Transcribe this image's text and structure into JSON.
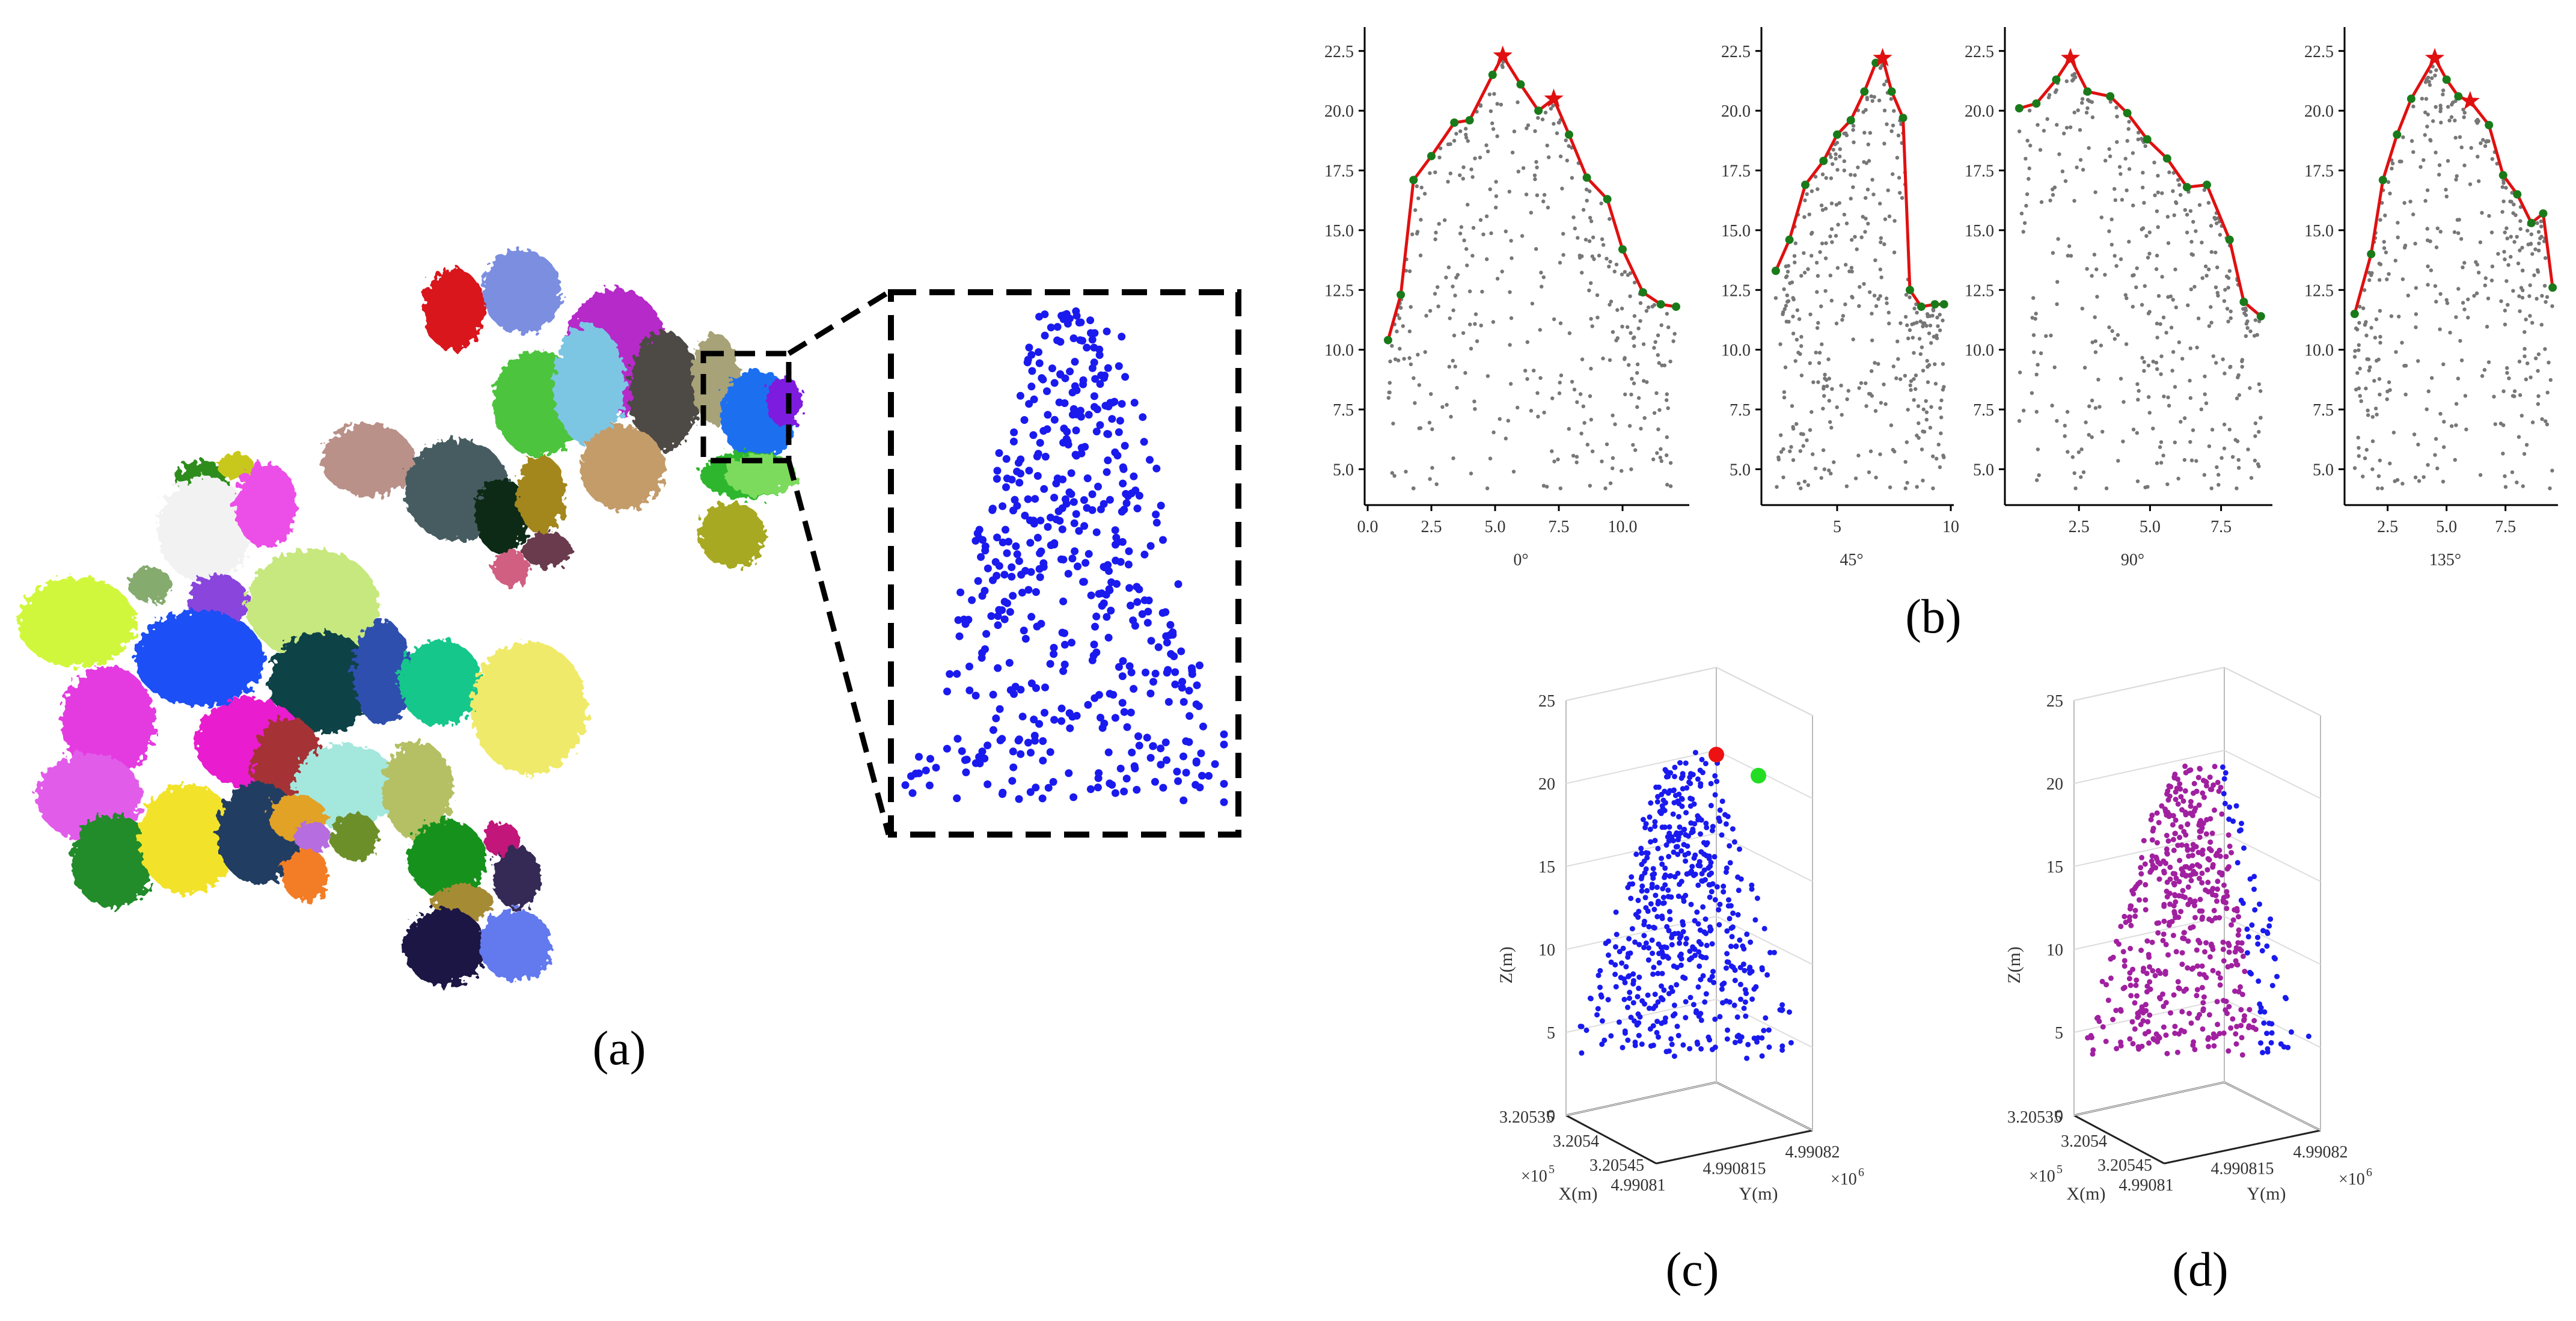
{
  "panel_labels": {
    "a": "(a)",
    "b": "(b)",
    "c": "(c)",
    "d": "(d)"
  },
  "colors": {
    "points": "#1a1aee",
    "profile": "#e01010",
    "peak_star": "#e01010",
    "vertex": "#1a7a1a",
    "grey": "#777777",
    "purple": "#a020a0",
    "seed_red": "#ee1111",
    "seed_green": "#22dd22"
  },
  "crowns": [
    {
      "color": "#d9121e"
    },
    {
      "color": "#7b8ee0"
    },
    {
      "color": "#b52cc9"
    },
    {
      "color": "#4ec43e"
    },
    {
      "color": "#7cc6e4"
    },
    {
      "color": "#4d4844"
    },
    {
      "color": "#a7a277"
    },
    {
      "color": "#1e70f0"
    },
    {
      "color": "#7d1bdf"
    },
    {
      "color": "#2db62d"
    },
    {
      "color": "#a8a923"
    },
    {
      "color": "#c39c6b"
    },
    {
      "color": "#b99189"
    },
    {
      "color": "#475b60"
    },
    {
      "color": "#0c2b14"
    },
    {
      "color": "#a3871f"
    },
    {
      "color": "#6b3a4e"
    },
    {
      "color": "#d05f82"
    },
    {
      "color": "#2f8c1a"
    },
    {
      "color": "#c8c81e"
    },
    {
      "color": "#f2f2f2"
    },
    {
      "color": "#ec4fe7"
    },
    {
      "color": "#d1f73c"
    },
    {
      "color": "#85ab6e"
    },
    {
      "color": "#8a45dd"
    },
    {
      "color": "#c7e87e"
    },
    {
      "color": "#1e4ff5"
    },
    {
      "color": "#0e4347"
    },
    {
      "color": "#2f4fae"
    },
    {
      "color": "#19c78c"
    },
    {
      "color": "#f0ea6a"
    },
    {
      "color": "#e43be0"
    },
    {
      "color": "#e91bcf"
    },
    {
      "color": "#a53336"
    },
    {
      "color": "#a4e7dd"
    },
    {
      "color": "#b4c064"
    },
    {
      "color": "#e25cea"
    },
    {
      "color": "#218b2c"
    },
    {
      "color": "#f2e32c"
    },
    {
      "color": "#233c62"
    },
    {
      "color": "#e1a227"
    },
    {
      "color": "#f27d26"
    },
    {
      "color": "#6d8f2a"
    },
    {
      "color": "#12921d"
    },
    {
      "color": "#c2177a"
    },
    {
      "color": "#342a57"
    },
    {
      "color": "#a68b36"
    },
    {
      "color": "#1d1844"
    },
    {
      "color": "#6479ee"
    },
    {
      "color": "#7cdb5b"
    },
    {
      "color": "#b56de0"
    }
  ],
  "chart_data": [
    {
      "type": "scatter",
      "panel": "b",
      "subplot": "0°",
      "xlabel": "0°",
      "xlim": [
        0,
        12.5
      ],
      "xticks": [
        "0.0",
        "2.5",
        "5.0",
        "7.5",
        "10.0"
      ],
      "ylim": [
        3.5,
        23.5
      ],
      "yticks": [
        "5.0",
        "7.5",
        "10.0",
        "12.5",
        "15.0",
        "17.5",
        "20.0",
        "22.5"
      ],
      "profile_line": [
        [
          0.8,
          10.4
        ],
        [
          1.3,
          12.3
        ],
        [
          1.8,
          17.1
        ],
        [
          2.5,
          18.1
        ],
        [
          3.4,
          19.5
        ],
        [
          4.0,
          19.6
        ],
        [
          4.9,
          21.5
        ],
        [
          5.3,
          22.3
        ],
        [
          6.0,
          21.1
        ],
        [
          6.7,
          20.0
        ],
        [
          7.3,
          20.5
        ],
        [
          7.9,
          19.0
        ],
        [
          8.6,
          17.2
        ],
        [
          9.4,
          16.3
        ],
        [
          10.0,
          14.2
        ],
        [
          10.8,
          12.4
        ],
        [
          11.5,
          11.9
        ],
        [
          12.1,
          11.8
        ]
      ],
      "peaks": [
        [
          5.3,
          22.3
        ],
        [
          7.3,
          20.5
        ]
      ]
    },
    {
      "type": "scatter",
      "panel": "b",
      "subplot": "45°",
      "xlabel": "45°",
      "xlim": [
        1.8,
        10.0
      ],
      "xticks": [
        "5",
        "10"
      ],
      "ylim": [
        3.5,
        23.5
      ],
      "yticks": [
        "5.0",
        "7.5",
        "10.0",
        "12.5",
        "15.0",
        "17.5",
        "20.0",
        "22.5"
      ],
      "profile_line": [
        [
          2.3,
          13.3
        ],
        [
          2.9,
          14.6
        ],
        [
          3.6,
          16.9
        ],
        [
          4.4,
          17.9
        ],
        [
          5.0,
          19.0
        ],
        [
          5.6,
          19.6
        ],
        [
          6.2,
          20.8
        ],
        [
          6.7,
          22.0
        ],
        [
          7.0,
          22.2
        ],
        [
          7.4,
          20.8
        ],
        [
          7.9,
          19.7
        ],
        [
          8.2,
          12.5
        ],
        [
          8.7,
          11.8
        ],
        [
          9.3,
          11.9
        ],
        [
          9.7,
          11.9
        ]
      ],
      "peaks": [
        [
          7.0,
          22.2
        ]
      ]
    },
    {
      "type": "scatter",
      "panel": "b",
      "subplot": "90°",
      "xlabel": "90°",
      "xlim": [
        0,
        9.2
      ],
      "xticks": [
        "2.5",
        "5.0",
        "7.5"
      ],
      "ylim": [
        3.5,
        23.5
      ],
      "yticks": [
        "5.0",
        "7.5",
        "10.0",
        "12.5",
        "15.0",
        "17.5",
        "20.0",
        "22.5"
      ],
      "profile_line": [
        [
          0.4,
          20.1
        ],
        [
          1.0,
          20.3
        ],
        [
          1.7,
          21.3
        ],
        [
          2.2,
          22.2
        ],
        [
          2.8,
          20.8
        ],
        [
          3.6,
          20.6
        ],
        [
          4.2,
          19.9
        ],
        [
          4.9,
          18.8
        ],
        [
          5.6,
          18.0
        ],
        [
          6.3,
          16.8
        ],
        [
          7.0,
          16.9
        ],
        [
          7.8,
          14.6
        ],
        [
          8.3,
          12.0
        ],
        [
          8.9,
          11.4
        ]
      ],
      "peaks": [
        [
          2.2,
          22.2
        ]
      ]
    },
    {
      "type": "scatter",
      "panel": "b",
      "subplot": "135°",
      "xlabel": "135°",
      "xlim": [
        0.8,
        9.6
      ],
      "xticks": [
        "2.5",
        "5.0",
        "7.5"
      ],
      "ylim": [
        3.5,
        23.5
      ],
      "yticks": [
        "5.0",
        "7.5",
        "10.0",
        "12.5",
        "15.0",
        "17.5",
        "20.0",
        "22.5"
      ],
      "profile_line": [
        [
          1.1,
          11.5
        ],
        [
          1.8,
          14.0
        ],
        [
          2.3,
          17.1
        ],
        [
          2.9,
          19.0
        ],
        [
          3.5,
          20.5
        ],
        [
          4.5,
          22.2
        ],
        [
          5.0,
          21.3
        ],
        [
          5.5,
          20.6
        ],
        [
          6.0,
          20.4
        ],
        [
          6.8,
          19.4
        ],
        [
          7.4,
          17.3
        ],
        [
          8.0,
          16.5
        ],
        [
          8.6,
          15.3
        ],
        [
          9.1,
          15.7
        ],
        [
          9.5,
          12.6
        ]
      ],
      "peaks": [
        [
          4.5,
          22.2
        ],
        [
          6.0,
          20.4
        ]
      ]
    },
    {
      "type": "scatter",
      "panel": "c",
      "subtype": "3d-scatter",
      "xlabel": "X(m)",
      "ylabel": "Y(m)",
      "zlabel": "Z(m)",
      "x_exponent": "×10",
      "x_exponent_power": "5",
      "y_exponent": "×10",
      "y_exponent_power": "6",
      "zlim": [
        0,
        25
      ],
      "zticks": [
        "0",
        "5",
        "10",
        "15",
        "20",
        "25"
      ],
      "xticks": [
        "3.20535",
        "3.2054",
        "3.20545"
      ],
      "yticks": [
        "4.99081",
        "4.990815",
        "4.99082"
      ],
      "seed_points": [
        "red",
        "green"
      ]
    },
    {
      "type": "scatter",
      "panel": "d",
      "subtype": "3d-scatter",
      "xlabel": "X(m)",
      "ylabel": "Y(m)",
      "zlabel": "Z(m)",
      "x_exponent": "×10",
      "x_exponent_power": "5",
      "y_exponent": "×10",
      "y_exponent_power": "6",
      "zlim": [
        0,
        25
      ],
      "zticks": [
        "0",
        "5",
        "10",
        "15",
        "20",
        "25"
      ],
      "xticks": [
        "3.20535",
        "3.2054",
        "3.20545"
      ],
      "yticks": [
        "4.99081",
        "4.990815",
        "4.99082"
      ],
      "segments": [
        "purple",
        "blue"
      ]
    }
  ]
}
